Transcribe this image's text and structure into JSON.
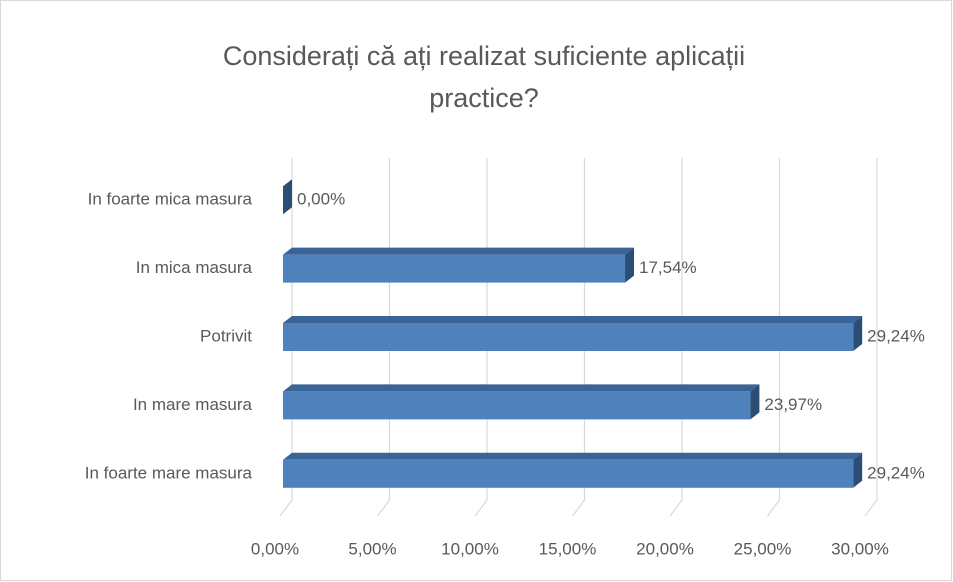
{
  "chart_data": {
    "type": "bar",
    "orientation": "horizontal",
    "title": "Considerați că ați realizat suficiente aplicații practice?",
    "categories": [
      "In foarte mica masura",
      "In mica masura",
      "Potrivit",
      "In mare masura",
      "In foarte mare masura"
    ],
    "values": [
      0,
      17.54,
      29.24,
      23.97,
      29.24
    ],
    "value_labels": [
      "0,00%",
      "17,54%",
      "29,24%",
      "23,97%",
      "29,24%"
    ],
    "color": "#4f81bd",
    "xlim": [
      0,
      30
    ],
    "xticks": [
      {
        "value": 0,
        "label": "0,00%"
      },
      {
        "value": 5,
        "label": "5,00%"
      },
      {
        "value": 10,
        "label": "10,00%"
      },
      {
        "value": 15,
        "label": "15,00%"
      },
      {
        "value": 20,
        "label": "20,00%"
      },
      {
        "value": 25,
        "label": "25,00%"
      },
      {
        "value": 30,
        "label": "30,00%"
      }
    ],
    "grid": true
  }
}
